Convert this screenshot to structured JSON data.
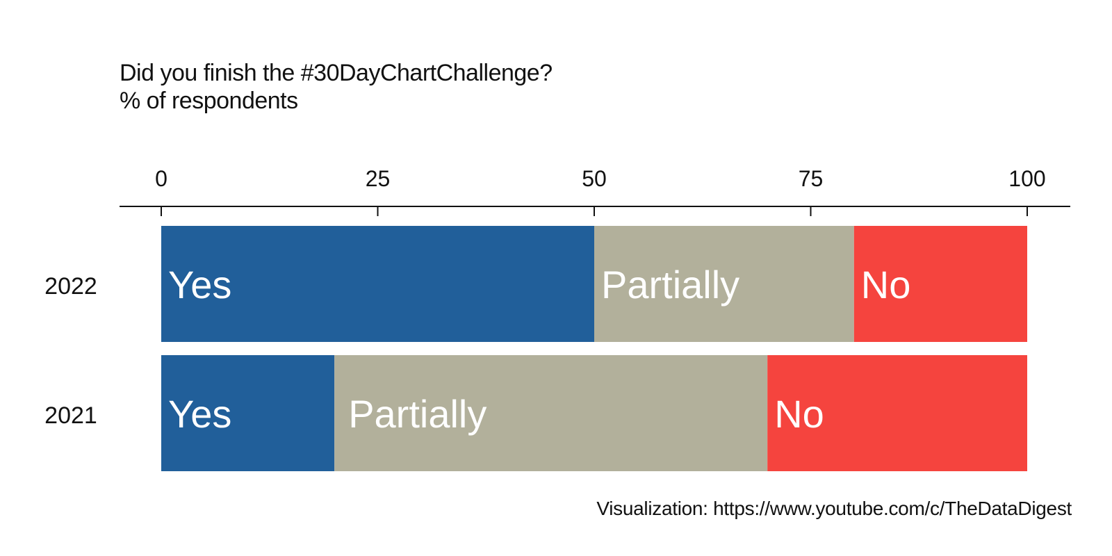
{
  "chart_data": {
    "type": "bar",
    "orientation": "horizontal",
    "stacked": true,
    "title": "Did you finish the #30DayChartChallenge?",
    "subtitle": "% of respondents",
    "caption": "Visualization: https://www.youtube.com/c/TheDataDigest",
    "categories": [
      "2022",
      "2021"
    ],
    "series": [
      {
        "name": "Yes",
        "color": "#215f9a",
        "values": [
          50,
          20
        ]
      },
      {
        "name": "Partially",
        "color": "#b2b09b",
        "values": [
          30,
          50
        ]
      },
      {
        "name": "No",
        "color": "#f5443e",
        "values": [
          20,
          30
        ]
      }
    ],
    "xlim": [
      0,
      100
    ],
    "xticks": [
      0,
      25,
      50,
      75,
      100
    ],
    "x_axis_position": "top",
    "grid": false,
    "legend": "none",
    "segment_labels": "inside-left"
  }
}
